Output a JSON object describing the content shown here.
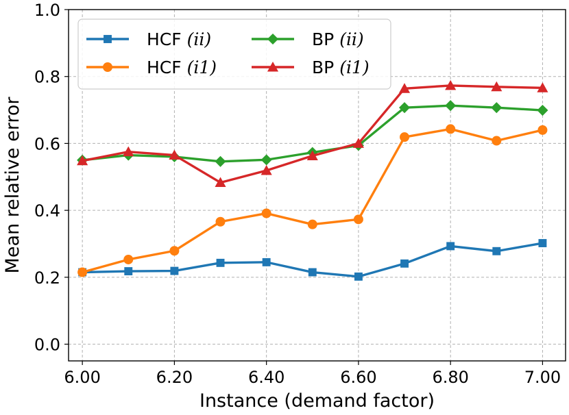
{
  "chart_data": {
    "type": "line",
    "xlabel": "Instance (demand factor)",
    "ylabel": "Mean relative error",
    "x": [
      6.0,
      6.1,
      6.2,
      6.3,
      6.4,
      6.5,
      6.6,
      6.7,
      6.8,
      6.9,
      7.0
    ],
    "xlim": [
      5.97,
      7.05
    ],
    "ylim": [
      -0.05,
      1.0
    ],
    "xticks": [
      "6.00",
      "6.20",
      "6.40",
      "6.60",
      "6.80",
      "7.00"
    ],
    "yticks": [
      "0.0",
      "0.2",
      "0.4",
      "0.6",
      "0.8",
      "1.0"
    ],
    "grid": true,
    "legend_position": "top-left",
    "series": [
      {
        "name_text": "HCF ",
        "name_math": "(ii)",
        "color": "#1f77b4",
        "marker": "square",
        "values": [
          0.215,
          0.218,
          0.219,
          0.243,
          0.245,
          0.215,
          0.202,
          0.241,
          0.293,
          0.278,
          0.302
        ]
      },
      {
        "name_text": "HCF ",
        "name_math": "(i1)",
        "color": "#ff7f0e",
        "marker": "circle",
        "values": [
          0.215,
          0.253,
          0.279,
          0.366,
          0.391,
          0.358,
          0.373,
          0.619,
          0.643,
          0.608,
          0.64
        ]
      },
      {
        "name_text": "BP ",
        "name_math": "(ii)",
        "color": "#2ca02c",
        "marker": "diamond",
        "values": [
          0.55,
          0.565,
          0.56,
          0.546,
          0.551,
          0.573,
          0.594,
          0.707,
          0.713,
          0.707,
          0.699
        ]
      },
      {
        "name_text": "BP ",
        "name_math": "(i1)",
        "color": "#d62728",
        "marker": "triangle",
        "values": [
          0.548,
          0.575,
          0.565,
          0.483,
          0.519,
          0.563,
          0.6,
          0.764,
          0.773,
          0.769,
          0.766
        ]
      }
    ]
  }
}
